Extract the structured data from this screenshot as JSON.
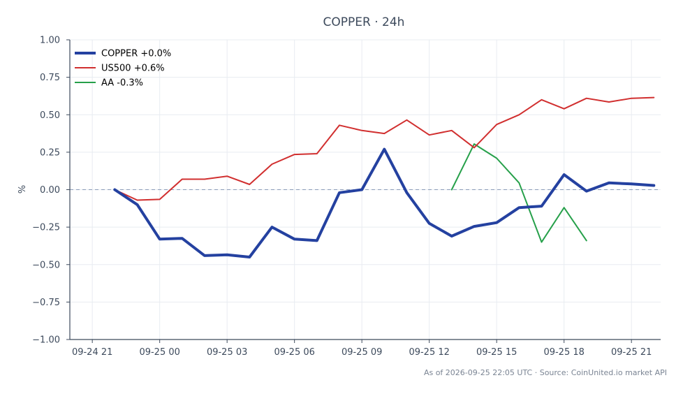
{
  "chart_data": {
    "type": "line",
    "title": "COPPER · 24h",
    "xlabel": "",
    "ylabel": "%",
    "ylim": [
      -1.0,
      1.0
    ],
    "yticks": [
      "1.00",
      "0.75",
      "0.50",
      "0.25",
      "0.00",
      "−0.25",
      "−0.50",
      "−0.75",
      "−1.00"
    ],
    "ytick_values": [
      1.0,
      0.75,
      0.5,
      0.25,
      0.0,
      -0.25,
      -0.5,
      -0.75,
      -1.0
    ],
    "x_range_hours": [
      -1.0,
      25.3
    ],
    "xticks": [
      "09-24 21",
      "09-25 00",
      "09-25 03",
      "09-25 06",
      "09-25 09",
      "09-25 12",
      "09-25 15",
      "09-25 18",
      "09-25 21"
    ],
    "xtick_values": [
      0,
      3,
      6,
      9,
      12,
      15,
      18,
      21,
      24
    ],
    "x": [
      1,
      2,
      3,
      4,
      5,
      6,
      7,
      8,
      9,
      10,
      11,
      12,
      13,
      14,
      15,
      16,
      17,
      18,
      19,
      20,
      21,
      22,
      23,
      24,
      25
    ],
    "grid": true,
    "legend_position": "top-left",
    "zero_line": true,
    "series": [
      {
        "name": "COPPER +0.0%",
        "color": "#2441a0",
        "width": 4,
        "values": [
          0.0,
          -0.1,
          -0.33,
          -0.325,
          -0.44,
          -0.435,
          -0.45,
          -0.25,
          -0.33,
          -0.34,
          -0.02,
          0.0,
          0.27,
          -0.02,
          -0.225,
          -0.31,
          -0.245,
          -0.22,
          -0.12,
          -0.11,
          0.1,
          -0.01,
          0.045,
          0.038,
          0.028
        ]
      },
      {
        "name": "US500 +0.6%",
        "color": "#d12f2f",
        "width": 2,
        "values": [
          0.0,
          -0.07,
          -0.065,
          0.07,
          0.07,
          0.09,
          0.035,
          0.17,
          0.235,
          0.24,
          0.43,
          0.395,
          0.375,
          0.465,
          0.365,
          0.395,
          0.28,
          0.435,
          0.5,
          0.6,
          0.54,
          0.61,
          0.585,
          0.61,
          0.615
        ]
      },
      {
        "name": "AA -0.3%",
        "color": "#26a04a",
        "width": 2,
        "values": [
          null,
          null,
          null,
          null,
          null,
          null,
          null,
          null,
          null,
          null,
          null,
          null,
          null,
          null,
          null,
          0.0,
          0.305,
          0.21,
          0.045,
          -0.35,
          -0.12,
          -0.34,
          null,
          null,
          null
        ]
      }
    ]
  },
  "footer": "As of 2026-09-25 22:05 UTC · Source: CoinUnited.io market API"
}
